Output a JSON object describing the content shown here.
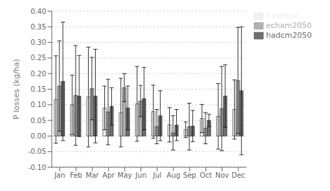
{
  "chart_data": {
    "type": "bar",
    "ylabel": "P losses (kg/ha)",
    "categories": [
      "Jan",
      "Feb",
      "Mar",
      "Apr",
      "May",
      "Jun",
      "Jul",
      "Aug",
      "Sep",
      "Oct",
      "Nov",
      "Dec"
    ],
    "series": [
      {
        "name": "baseline",
        "color": "#f0f0f0",
        "values": [
          0.117,
          0.1,
          0.125,
          0.09,
          0.075,
          0.103,
          0.078,
          0.036,
          0.02,
          0.056,
          0.063,
          0.085
        ],
        "errors": [
          0.14,
          0.095,
          0.16,
          0.07,
          0.11,
          0.12,
          0.085,
          0.055,
          0.025,
          0.045,
          0.105,
          0.095
        ]
      },
      {
        "name": "echam2050",
        "color": "#b0b0b0",
        "values": [
          0.16,
          0.13,
          0.152,
          0.077,
          0.155,
          0.112,
          0.03,
          0.01,
          0.03,
          0.025,
          0.088,
          0.178
        ],
        "errors": [
          0.145,
          0.16,
          0.1,
          0.105,
          0.045,
          0.05,
          0.055,
          0.055,
          0.075,
          0.05,
          0.135,
          0.17
        ]
      },
      {
        "name": "hadcm2050",
        "color": "#707070",
        "values": [
          0.175,
          0.128,
          0.128,
          0.095,
          0.09,
          0.12,
          0.065,
          0.035,
          0.032,
          0.05,
          0.128,
          0.145
        ],
        "errors": [
          0.19,
          0.13,
          0.15,
          0.06,
          0.07,
          0.1,
          0.08,
          0.05,
          0.05,
          0.02,
          0.1,
          0.205
        ]
      }
    ],
    "ylim": [
      -0.1,
      0.4
    ],
    "yticks": [
      {
        "value": -0.1,
        "label": "-0.10"
      },
      {
        "value": -0.05,
        "label": "-0.05"
      },
      {
        "value": 0.0,
        "label": "0.00"
      },
      {
        "value": 0.05,
        "label": "0.05"
      },
      {
        "value": 0.1,
        "label": "0.10"
      },
      {
        "value": 0.15,
        "label": "0.15"
      },
      {
        "value": 0.2,
        "label": "0.20"
      },
      {
        "value": 0.25,
        "label": "0.25"
      },
      {
        "value": 0.3,
        "label": "0.30"
      },
      {
        "value": 0.35,
        "label": "0.35"
      },
      {
        "value": 0.4,
        "label": "0.40"
      }
    ],
    "grid": true,
    "legend": "right"
  }
}
